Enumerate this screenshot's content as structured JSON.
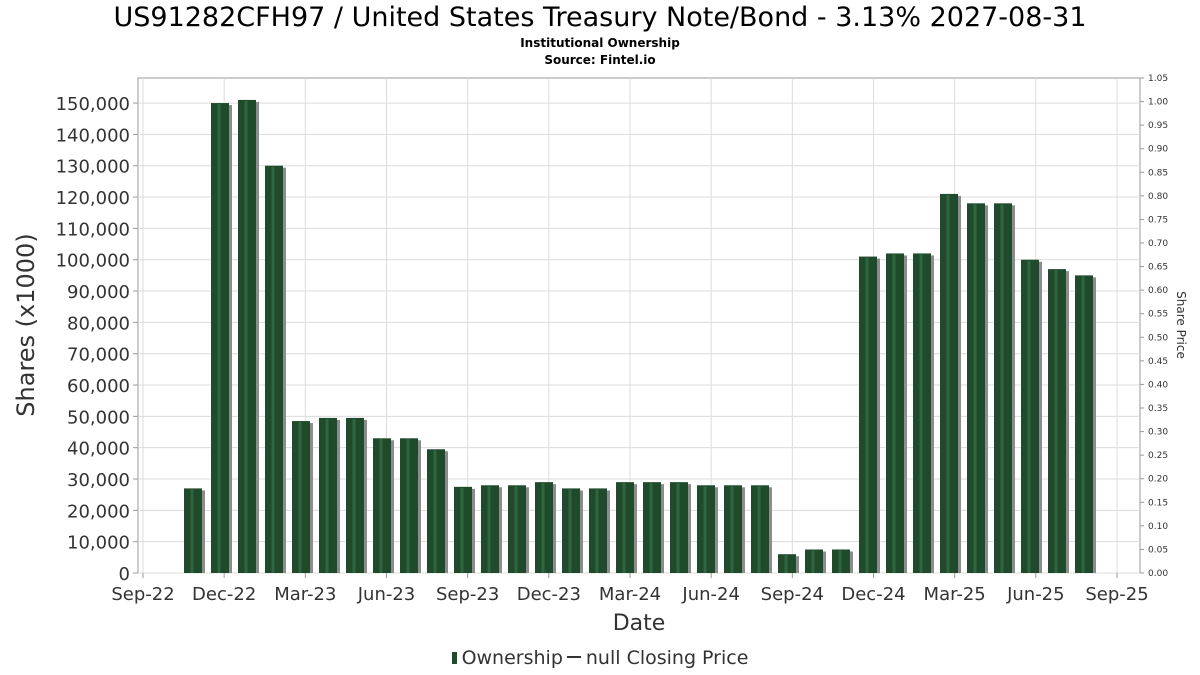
{
  "header": {
    "title": "US91282CFH97 / United States Treasury Note/Bond - 3.13% 2027-08-31",
    "subtitle_1": "Institutional Ownership",
    "subtitle_2": "Source: Fintel.io"
  },
  "legend": {
    "ownership_label": "Ownership",
    "price_label": "null Closing Price"
  },
  "colors": {
    "bar_fill": "#1f4a2c",
    "bar_shadow": "#8c8c8c",
    "grid": "#dcdcdc",
    "text": "#333333"
  },
  "chart_data": {
    "type": "bar",
    "xlabel": "Date",
    "ylabel": "Shares (x1000)",
    "y2label": "Share Price",
    "ylim": [
      0,
      158000
    ],
    "y2lim": [
      0,
      1.05
    ],
    "y_ticks": [
      "0",
      "10,000",
      "20,000",
      "30,000",
      "40,000",
      "50,000",
      "60,000",
      "70,000",
      "80,000",
      "90,000",
      "100,000",
      "110,000",
      "120,000",
      "130,000",
      "140,000",
      "150,000"
    ],
    "y2_ticks": [
      "0.00",
      "0.05",
      "0.10",
      "0.15",
      "0.20",
      "0.25",
      "0.30",
      "0.35",
      "0.40",
      "0.45",
      "0.50",
      "0.55",
      "0.60",
      "0.65",
      "0.70",
      "0.75",
      "0.80",
      "0.85",
      "0.90",
      "0.95",
      "1.00",
      "1.05"
    ],
    "x_ticks": [
      "Sep-22",
      "Dec-22",
      "Mar-23",
      "Jun-23",
      "Sep-23",
      "Dec-23",
      "Mar-24",
      "Jun-24",
      "Sep-24",
      "Dec-24",
      "Mar-25",
      "Jun-25",
      "Sep-25"
    ],
    "grid": true,
    "legend_position": "bottom",
    "series": [
      {
        "name": "Ownership",
        "values": [
          27000,
          150000,
          151000,
          130000,
          48500,
          49500,
          49500,
          43000,
          43000,
          39500,
          27500,
          28000,
          28000,
          29000,
          27000,
          27000,
          29000,
          29000,
          29000,
          28000,
          28000,
          28000,
          6000,
          7500,
          7500,
          101000,
          102000,
          102000,
          121000,
          118000,
          118000,
          100000,
          97000,
          95000
        ]
      }
    ]
  }
}
